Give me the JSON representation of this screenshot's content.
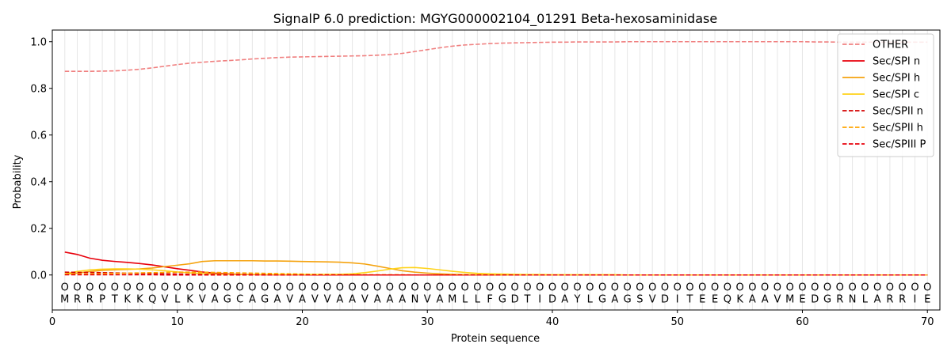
{
  "chart_data": {
    "type": "line",
    "title": "SignalP 6.0 prediction: MGYG000002104_01291 Beta-hexosaminidase",
    "xlabel": "Protein sequence",
    "ylabel": "Probability",
    "xlim": [
      0,
      71
    ],
    "ylim": [
      -0.15,
      1.05
    ],
    "xticks": [
      0,
      10,
      20,
      30,
      40,
      50,
      60,
      70
    ],
    "yticks": [
      0.0,
      0.2,
      0.4,
      0.6,
      0.8,
      1.0
    ],
    "ytick_labels": [
      "0.0",
      "0.2",
      "0.4",
      "0.6",
      "0.8",
      "1.0"
    ],
    "grid": "vertical lines at each residue",
    "legend_position": "top-right",
    "sequence": [
      "M",
      "R",
      "R",
      "P",
      "T",
      "K",
      "K",
      "Q",
      "V",
      "L",
      "K",
      "V",
      "A",
      "G",
      "C",
      "A",
      "G",
      "A",
      "V",
      "A",
      "V",
      "V",
      "A",
      "A",
      "V",
      "A",
      "A",
      "A",
      "N",
      "V",
      "A",
      "M",
      "L",
      "L",
      "F",
      "G",
      "D",
      "T",
      "I",
      "D",
      "A",
      "Y",
      "L",
      "G",
      "A",
      "G",
      "S",
      "V",
      "D",
      "I",
      "T",
      "E",
      "E",
      "Q",
      "K",
      "A",
      "A",
      "V",
      "M",
      "E",
      "D",
      "G",
      "R",
      "N",
      "L",
      "A",
      "R",
      "R",
      "I",
      "E"
    ],
    "region_label": "O",
    "series": [
      {
        "name": "OTHER",
        "color": "#f08080",
        "dash": "dashed",
        "values": [
          0.873,
          0.873,
          0.873,
          0.874,
          0.875,
          0.878,
          0.882,
          0.888,
          0.895,
          0.902,
          0.908,
          0.912,
          0.916,
          0.919,
          0.922,
          0.926,
          0.929,
          0.932,
          0.934,
          0.935,
          0.936,
          0.937,
          0.938,
          0.939,
          0.94,
          0.942,
          0.945,
          0.95,
          0.958,
          0.966,
          0.974,
          0.981,
          0.986,
          0.989,
          0.992,
          0.994,
          0.995,
          0.996,
          0.997,
          0.998,
          0.998,
          0.999,
          0.999,
          0.999,
          0.999,
          1.0,
          1.0,
          1.0,
          1.0,
          1.0,
          1.0,
          1.0,
          1.0,
          1.0,
          1.0,
          1.0,
          1.0,
          1.0,
          1.0,
          1.0,
          0.999,
          0.999,
          0.998,
          0.998,
          0.998,
          0.998,
          0.998,
          0.998,
          0.998,
          0.998
        ]
      },
      {
        "name": "Sec/SPI n",
        "color": "#e8000b",
        "dash": "solid",
        "values": [
          0.098,
          0.088,
          0.072,
          0.063,
          0.058,
          0.054,
          0.049,
          0.043,
          0.035,
          0.027,
          0.02,
          0.013,
          0.008,
          0.005,
          0.003,
          0.002,
          0.001,
          0.001,
          0.001,
          0.001,
          0.0,
          0.0,
          0.0,
          0.0,
          0.0,
          0.0,
          0.0,
          0.0,
          0.0,
          0.0,
          0.0,
          0.0,
          0.0,
          0.0,
          0.0,
          0.0,
          0.0,
          0.0,
          0.0,
          0.0,
          0.0,
          0.0,
          0.0,
          0.0,
          0.0,
          0.0,
          0.0,
          0.0,
          0.0,
          0.0,
          0.0,
          0.0,
          0.0,
          0.0,
          0.0,
          0.0,
          0.0,
          0.0,
          0.0,
          0.0,
          0.0,
          0.0,
          0.0,
          0.0,
          0.0,
          0.0,
          0.0,
          0.0,
          0.0,
          0.0
        ]
      },
      {
        "name": "Sec/SPI h",
        "color": "#f5a30f",
        "dash": "solid",
        "values": [
          0.003,
          0.008,
          0.015,
          0.02,
          0.022,
          0.024,
          0.026,
          0.03,
          0.036,
          0.042,
          0.048,
          0.058,
          0.061,
          0.061,
          0.061,
          0.061,
          0.06,
          0.06,
          0.059,
          0.058,
          0.057,
          0.056,
          0.055,
          0.052,
          0.047,
          0.038,
          0.028,
          0.018,
          0.012,
          0.008,
          0.005,
          0.003,
          0.002,
          0.001,
          0.001,
          0.0,
          0.0,
          0.0,
          0.0,
          0.0,
          0.0,
          0.0,
          0.0,
          0.0,
          0.0,
          0.0,
          0.0,
          0.0,
          0.0,
          0.0,
          0.0,
          0.0,
          0.0,
          0.0,
          0.0,
          0.0,
          0.0,
          0.0,
          0.0,
          0.0,
          0.0,
          0.0,
          0.0,
          0.0,
          0.0,
          0.0,
          0.0,
          0.0,
          0.0,
          0.0
        ]
      },
      {
        "name": "Sec/SPI c",
        "color": "#ffd319",
        "dash": "solid",
        "values": [
          0.005,
          0.015,
          0.022,
          0.025,
          0.026,
          0.026,
          0.025,
          0.022,
          0.018,
          0.013,
          0.009,
          0.006,
          0.004,
          0.003,
          0.002,
          0.002,
          0.002,
          0.002,
          0.002,
          0.002,
          0.002,
          0.002,
          0.003,
          0.005,
          0.01,
          0.017,
          0.025,
          0.031,
          0.032,
          0.028,
          0.022,
          0.016,
          0.011,
          0.007,
          0.005,
          0.004,
          0.003,
          0.002,
          0.002,
          0.001,
          0.001,
          0.001,
          0.001,
          0.001,
          0.001,
          0.0,
          0.0,
          0.0,
          0.0,
          0.0,
          0.0,
          0.0,
          0.0,
          0.0,
          0.0,
          0.0,
          0.0,
          0.0,
          0.0,
          0.0,
          0.0,
          0.0,
          0.0,
          0.0,
          0.0,
          0.0,
          0.0,
          0.0,
          0.0,
          0.0
        ]
      },
      {
        "name": "Sec/SPII n",
        "color": "#d40000",
        "dash": "dashed",
        "values": [
          0.012,
          0.011,
          0.011,
          0.01,
          0.009,
          0.008,
          0.007,
          0.006,
          0.005,
          0.004,
          0.003,
          0.002,
          0.002,
          0.001,
          0.001,
          0.001,
          0.001,
          0.0,
          0.0,
          0.0,
          0.0,
          0.0,
          0.0,
          0.0,
          0.0,
          0.0,
          0.0,
          0.0,
          0.0,
          0.0,
          0.0,
          0.0,
          0.0,
          0.0,
          0.0,
          0.0,
          0.0,
          0.0,
          0.0,
          0.0,
          0.0,
          0.0,
          0.0,
          0.0,
          0.0,
          0.0,
          0.0,
          0.0,
          0.0,
          0.0,
          0.0,
          0.0,
          0.0,
          0.0,
          0.0,
          0.0,
          0.0,
          0.0,
          0.0,
          0.0,
          0.0,
          0.0,
          0.0,
          0.0,
          0.0,
          0.0,
          0.0,
          0.0,
          0.0,
          0.0
        ]
      },
      {
        "name": "Sec/SPII h",
        "color": "#ffa500",
        "dash": "dashed",
        "values": [
          0.003,
          0.004,
          0.005,
          0.006,
          0.007,
          0.008,
          0.009,
          0.01,
          0.011,
          0.012,
          0.012,
          0.012,
          0.011,
          0.01,
          0.009,
          0.008,
          0.007,
          0.006,
          0.005,
          0.004,
          0.003,
          0.003,
          0.002,
          0.002,
          0.001,
          0.001,
          0.001,
          0.001,
          0.0,
          0.0,
          0.0,
          0.0,
          0.0,
          0.0,
          0.0,
          0.0,
          0.0,
          0.0,
          0.0,
          0.0,
          0.0,
          0.0,
          0.0,
          0.0,
          0.0,
          0.0,
          0.0,
          0.0,
          0.0,
          0.0,
          0.0,
          0.0,
          0.0,
          0.0,
          0.0,
          0.0,
          0.0,
          0.0,
          0.0,
          0.0,
          0.0,
          0.0,
          0.0,
          0.0,
          0.0,
          0.0,
          0.0,
          0.0,
          0.0,
          0.0
        ]
      },
      {
        "name": "Sec/SPIII P",
        "color": "#e8000b",
        "dash": "dashed",
        "values": [
          0.001,
          0.001,
          0.001,
          0.001,
          0.001,
          0.001,
          0.001,
          0.001,
          0.0,
          0.0,
          0.0,
          0.0,
          0.0,
          0.0,
          0.0,
          0.0,
          0.0,
          0.0,
          0.0,
          0.0,
          0.0,
          0.0,
          0.0,
          0.0,
          0.0,
          0.0,
          0.0,
          0.0,
          0.0,
          0.0,
          0.0,
          0.0,
          0.0,
          0.0,
          0.0,
          0.0,
          0.0,
          0.0,
          0.0,
          0.0,
          0.0,
          0.0,
          0.0,
          0.0,
          0.0,
          0.0,
          0.0,
          0.0,
          0.0,
          0.0,
          0.0,
          0.0,
          0.0,
          0.0,
          0.0,
          0.0,
          0.0,
          0.0,
          0.0,
          0.0,
          0.0,
          0.0,
          0.0,
          0.0,
          0.0,
          0.0,
          0.0,
          0.0,
          0.0,
          0.0
        ]
      }
    ]
  }
}
